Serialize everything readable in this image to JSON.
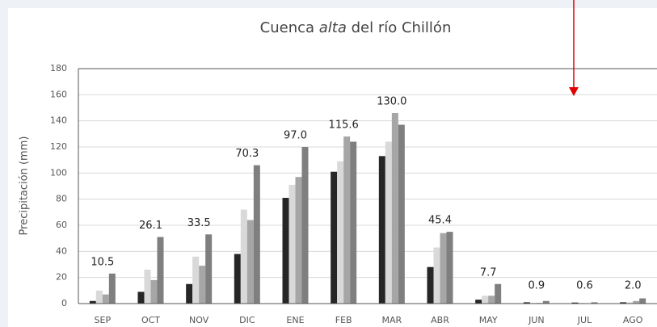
{
  "chart_data": {
    "type": "bar",
    "title_parts": [
      "Cuenca ",
      "alta",
      " del río Chillón"
    ],
    "y_label": "Precipitación (mm)",
    "categories": [
      "SEP",
      "OCT",
      "NOV",
      "DIC",
      "ENE",
      "FEB",
      "MAR",
      "ABR",
      "MAY",
      "JUN",
      "JUL",
      "AGO"
    ],
    "series": [
      {
        "color": "#262626",
        "values": [
          2,
          9,
          15,
          38,
          81,
          101,
          113,
          28,
          3,
          1,
          0.8,
          1
        ]
      },
      {
        "color": "#d9d9d9",
        "values": [
          10,
          26,
          36,
          72,
          91,
          109,
          124,
          43,
          6,
          0.5,
          0.5,
          1
        ]
      },
      {
        "color": "#a6a6a6",
        "values": [
          7,
          18,
          29,
          64,
          97,
          128,
          146,
          54,
          6,
          0.5,
          0.3,
          2
        ]
      },
      {
        "color": "#7f7f7f",
        "values": [
          23,
          51,
          53,
          106,
          120,
          124,
          137,
          55,
          15,
          2,
          1,
          4
        ]
      }
    ],
    "group_labels": [
      "10.5",
      "26.1",
      "33.5",
      "70.3",
      "97.0",
      "115.6",
      "130.0",
      "45.4",
      "7.7",
      "0.9",
      "0.6",
      "2.0"
    ],
    "ylim": [
      0,
      180
    ],
    "yticks": [
      0,
      20,
      40,
      60,
      80,
      100,
      120,
      140,
      160,
      180
    ],
    "grid": true
  }
}
